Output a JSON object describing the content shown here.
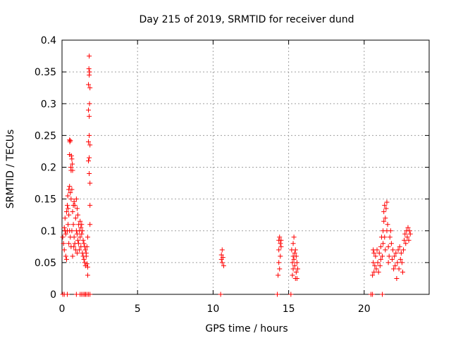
{
  "chart_data": {
    "type": "scatter",
    "title": "Day 215 of 2019, SRMTID for receiver dund",
    "xlabel": "GPS time / hours",
    "ylabel": "SRMTID / TECUs",
    "xlim": [
      0,
      24.3
    ],
    "ylim": [
      0,
      0.4
    ],
    "xticks": [
      0,
      5,
      10,
      15,
      20
    ],
    "xtick_labels": [
      "0",
      "5",
      "10",
      "15",
      "20"
    ],
    "yticks": [
      0,
      0.05,
      0.1,
      0.15,
      0.2,
      0.25,
      0.3,
      0.35,
      0.4
    ],
    "ytick_labels": [
      "0",
      "0.05",
      "0.1",
      "0.15",
      "0.2",
      "0.25",
      "0.3",
      "0.35",
      "0.4"
    ],
    "grid": true,
    "marker": "+",
    "color": "#ff0000",
    "series": [
      {
        "name": "SRMTID",
        "points": [
          [
            0.05,
            0
          ],
          [
            0.15,
            0
          ],
          [
            0.35,
            0
          ],
          [
            0.95,
            0
          ],
          [
            1.2,
            0
          ],
          [
            1.3,
            0
          ],
          [
            1.4,
            0
          ],
          [
            1.5,
            0
          ],
          [
            1.55,
            0
          ],
          [
            1.65,
            0
          ],
          [
            1.75,
            0
          ],
          [
            1.85,
            0
          ],
          [
            0.05,
            0.09
          ],
          [
            0.1,
            0.08
          ],
          [
            0.15,
            0.105
          ],
          [
            0.15,
            0.07
          ],
          [
            0.2,
            0.12
          ],
          [
            0.2,
            0.1
          ],
          [
            0.25,
            0.095
          ],
          [
            0.25,
            0.06
          ],
          [
            0.3,
            0.13
          ],
          [
            0.3,
            0.055
          ],
          [
            0.35,
            0.14
          ],
          [
            0.35,
            0.1
          ],
          [
            0.38,
            0.155
          ],
          [
            0.4,
            0.135
          ],
          [
            0.4,
            0.11
          ],
          [
            0.45,
            0.165
          ],
          [
            0.45,
            0.125
          ],
          [
            0.45,
            0.08
          ],
          [
            0.5,
            0.243
          ],
          [
            0.5,
            0.22
          ],
          [
            0.5,
            0.17
          ],
          [
            0.5,
            0.1
          ],
          [
            0.52,
            0.24
          ],
          [
            0.55,
            0.242
          ],
          [
            0.55,
            0.16
          ],
          [
            0.55,
            0.09
          ],
          [
            0.58,
            0.2
          ],
          [
            0.6,
            0.195
          ],
          [
            0.6,
            0.15
          ],
          [
            0.6,
            0.075
          ],
          [
            0.62,
            0.218
          ],
          [
            0.65,
            0.213
          ],
          [
            0.65,
            0.165
          ],
          [
            0.65,
            0.1
          ],
          [
            0.68,
            0.205
          ],
          [
            0.7,
            0.195
          ],
          [
            0.7,
            0.13
          ],
          [
            0.7,
            0.06
          ],
          [
            0.75,
            0.14
          ],
          [
            0.75,
            0.11
          ],
          [
            0.78,
            0.075
          ],
          [
            0.8,
            0.146
          ],
          [
            0.8,
            0.09
          ],
          [
            0.85,
            0.14
          ],
          [
            0.85,
            0.08
          ],
          [
            0.9,
            0.12
          ],
          [
            0.9,
            0.07
          ],
          [
            0.95,
            0.15
          ],
          [
            0.95,
            0.1
          ],
          [
            1.0,
            0.135
          ],
          [
            1.0,
            0.095
          ],
          [
            1.0,
            0.065
          ],
          [
            1.05,
            0.125
          ],
          [
            1.05,
            0.085
          ],
          [
            1.1,
            0.11
          ],
          [
            1.1,
            0.08
          ],
          [
            1.15,
            0.1
          ],
          [
            1.15,
            0.07
          ],
          [
            1.2,
            0.115
          ],
          [
            1.2,
            0.09
          ],
          [
            1.25,
            0.105
          ],
          [
            1.25,
            0.075
          ],
          [
            1.3,
            0.11
          ],
          [
            1.3,
            0.095
          ],
          [
            1.35,
            0.1
          ],
          [
            1.35,
            0.065
          ],
          [
            1.4,
            0.085
          ],
          [
            1.4,
            0.06
          ],
          [
            1.45,
            0.08
          ],
          [
            1.45,
            0.055
          ],
          [
            1.5,
            0.075
          ],
          [
            1.5,
            0.05
          ],
          [
            1.55,
            0.07
          ],
          [
            1.55,
            0.045
          ],
          [
            1.6,
            0.065
          ],
          [
            1.6,
            0.06
          ],
          [
            1.65,
            0.075
          ],
          [
            1.65,
            0.048
          ],
          [
            1.7,
            0.09
          ],
          [
            1.7,
            0.043
          ],
          [
            1.7,
            0.03
          ],
          [
            1.75,
            0.33
          ],
          [
            1.75,
            0.29
          ],
          [
            1.75,
            0.24
          ],
          [
            1.75,
            0.21
          ],
          [
            1.78,
            0.355
          ],
          [
            1.8,
            0.375
          ],
          [
            1.8,
            0.345
          ],
          [
            1.8,
            0.28
          ],
          [
            1.8,
            0.25
          ],
          [
            1.8,
            0.215
          ],
          [
            1.8,
            0.19
          ],
          [
            1.82,
            0.35
          ],
          [
            1.82,
            0.3
          ],
          [
            1.85,
            0.325
          ],
          [
            1.85,
            0.235
          ],
          [
            1.85,
            0.175
          ],
          [
            1.85,
            0.14
          ],
          [
            1.85,
            0.11
          ],
          [
            10.5,
            0
          ],
          [
            10.55,
            0.062
          ],
          [
            10.55,
            0.055
          ],
          [
            10.6,
            0.07
          ],
          [
            10.6,
            0.05
          ],
          [
            10.65,
            0.058
          ],
          [
            10.7,
            0.045
          ],
          [
            14.25,
            0
          ],
          [
            14.3,
            0.03
          ],
          [
            14.35,
            0.085
          ],
          [
            14.35,
            0.07
          ],
          [
            14.35,
            0.05
          ],
          [
            14.4,
            0.09
          ],
          [
            14.4,
            0.04
          ],
          [
            14.45,
            0.08
          ],
          [
            14.45,
            0.06
          ],
          [
            14.5,
            0.075
          ],
          [
            14.5,
            0.085
          ],
          [
            15.15,
            0
          ],
          [
            15.2,
            0.07
          ],
          [
            15.25,
            0.05
          ],
          [
            15.25,
            0.03
          ],
          [
            15.3,
            0.08
          ],
          [
            15.3,
            0.06
          ],
          [
            15.3,
            0.04
          ],
          [
            15.35,
            0.09
          ],
          [
            15.35,
            0.055
          ],
          [
            15.4,
            0.065
          ],
          [
            15.4,
            0.045
          ],
          [
            15.45,
            0.07
          ],
          [
            15.45,
            0.025
          ],
          [
            15.5,
            0.06
          ],
          [
            15.5,
            0.035
          ],
          [
            15.55,
            0.05
          ],
          [
            15.55,
            0.025
          ],
          [
            15.6,
            0.04
          ],
          [
            20.45,
            0
          ],
          [
            20.55,
            0
          ],
          [
            21.2,
            0
          ],
          [
            20.55,
            0.03
          ],
          [
            20.6,
            0.07
          ],
          [
            20.6,
            0.05
          ],
          [
            20.65,
            0.065
          ],
          [
            20.65,
            0.035
          ],
          [
            20.7,
            0.045
          ],
          [
            20.75,
            0.06
          ],
          [
            20.8,
            0.04
          ],
          [
            20.85,
            0.07
          ],
          [
            20.9,
            0.05
          ],
          [
            20.95,
            0.035
          ],
          [
            21.0,
            0.065
          ],
          [
            21.05,
            0.045
          ],
          [
            21.1,
            0.075
          ],
          [
            21.1,
            0.055
          ],
          [
            21.15,
            0.09
          ],
          [
            21.2,
            0.06
          ],
          [
            21.25,
            0.1
          ],
          [
            21.25,
            0.08
          ],
          [
            21.3,
            0.13
          ],
          [
            21.3,
            0.115
          ],
          [
            21.35,
            0.14
          ],
          [
            21.35,
            0.09
          ],
          [
            21.4,
            0.12
          ],
          [
            21.4,
            0.07
          ],
          [
            21.45,
            0.135
          ],
          [
            21.5,
            0.145
          ],
          [
            21.5,
            0.1
          ],
          [
            21.55,
            0.11
          ],
          [
            21.6,
            0.075
          ],
          [
            21.6,
            0.05
          ],
          [
            21.65,
            0.06
          ],
          [
            21.7,
            0.09
          ],
          [
            21.75,
            0.1
          ],
          [
            21.8,
            0.08
          ],
          [
            21.85,
            0.055
          ],
          [
            21.9,
            0.07
          ],
          [
            21.95,
            0.04
          ],
          [
            22.0,
            0.06
          ],
          [
            22.05,
            0.045
          ],
          [
            22.1,
            0.065
          ],
          [
            22.15,
            0.025
          ],
          [
            22.2,
            0.05
          ],
          [
            22.25,
            0.07
          ],
          [
            22.3,
            0.04
          ],
          [
            22.35,
            0.075
          ],
          [
            22.4,
            0.055
          ],
          [
            22.45,
            0.065
          ],
          [
            22.5,
            0.05
          ],
          [
            22.55,
            0.035
          ],
          [
            22.6,
            0.07
          ],
          [
            22.65,
            0.085
          ],
          [
            22.7,
            0.095
          ],
          [
            22.75,
            0.08
          ],
          [
            22.8,
            0.1
          ],
          [
            22.85,
            0.09
          ],
          [
            22.9,
            0.105
          ],
          [
            22.95,
            0.085
          ],
          [
            23.0,
            0.1
          ],
          [
            23.05,
            0.095
          ]
        ]
      }
    ]
  }
}
